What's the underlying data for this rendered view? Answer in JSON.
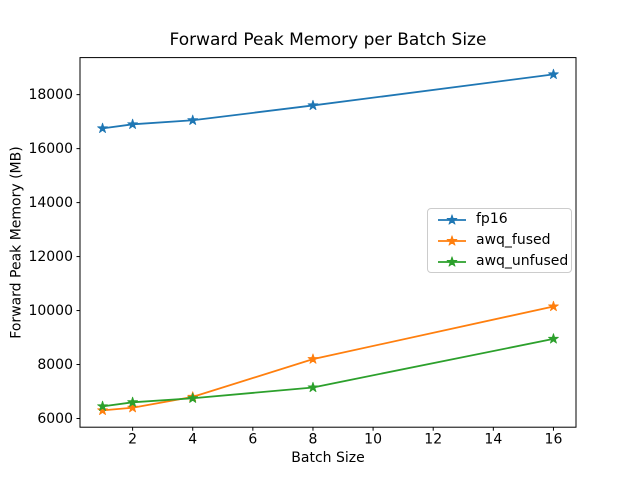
{
  "figure": {
    "background": "#ffffff",
    "text_color": "#000000",
    "spine_color": "#000000",
    "legend_border_color": "#cccccc"
  },
  "chart_data": {
    "type": "line",
    "title": "Forward Peak Memory per Batch Size",
    "xlabel": "Batch Size",
    "ylabel": "Forward Peak Memory (MB)",
    "x": [
      1,
      2,
      4,
      8,
      16
    ],
    "series": [
      {
        "name": "fp16",
        "color": "#1f77b4",
        "marker": "star",
        "values": [
          16750,
          16900,
          17050,
          17600,
          18750
        ]
      },
      {
        "name": "awq_fused",
        "color": "#ff7f0e",
        "marker": "star",
        "values": [
          6300,
          6400,
          6800,
          8200,
          10150
        ]
      },
      {
        "name": "awq_unfused",
        "color": "#2ca02c",
        "marker": "star",
        "values": [
          6450,
          6600,
          6750,
          7150,
          8950
        ]
      }
    ],
    "xticks": [
      2,
      4,
      6,
      8,
      10,
      12,
      14,
      16
    ],
    "yticks": [
      6000,
      8000,
      10000,
      12000,
      14000,
      16000,
      18000
    ],
    "xlim": [
      0.25,
      16.75
    ],
    "ylim": [
      5677.5,
      19372.5
    ],
    "grid": false,
    "legend": {
      "position": "center-right",
      "entries": [
        "fp16",
        "awq_fused",
        "awq_unfused"
      ]
    }
  }
}
